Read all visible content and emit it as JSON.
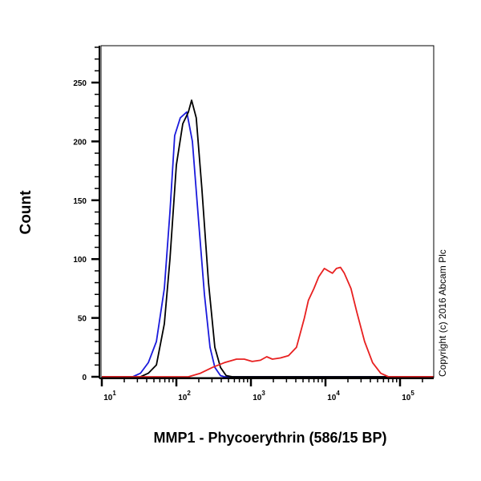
{
  "chart_data": {
    "type": "line",
    "title": "",
    "xlabel": "MMP1 - Phycoerythrin (586/15 BP)",
    "ylabel": "Count",
    "x_scale": "log",
    "xlim": [
      10,
      280000
    ],
    "ylim": [
      0,
      280
    ],
    "x_ticks": [
      {
        "base": "10",
        "exp": "1",
        "value": 10
      },
      {
        "base": "10",
        "exp": "2",
        "value": 100
      },
      {
        "base": "10",
        "exp": "3",
        "value": 1000
      },
      {
        "base": "10",
        "exp": "4",
        "value": 10000
      },
      {
        "base": "10",
        "exp": "5",
        "value": 100000
      }
    ],
    "y_ticks": [
      {
        "label": "0",
        "value": 0
      },
      {
        "label": "50",
        "value": 50
      },
      {
        "label": "100",
        "value": 100
      },
      {
        "label": "150",
        "value": 150
      },
      {
        "label": "200",
        "value": 200
      },
      {
        "label": "250",
        "value": 250
      }
    ],
    "grid": false,
    "annotation": "Copyright (c) 2016 Abcam Plc",
    "series": [
      {
        "color": "#1a1adc",
        "x": [
          10,
          26,
          33,
          42,
          54,
          69,
          82,
          95,
          113,
          138,
          164,
          200,
          238,
          283,
          328,
          390,
          442,
          280000
        ],
        "y": [
          0,
          0,
          3,
          12,
          30,
          75,
          140,
          205,
          220,
          225,
          200,
          130,
          70,
          25,
          8,
          1,
          0,
          0
        ]
      },
      {
        "color": "#000000",
        "x": [
          10,
          33,
          42,
          54,
          69,
          82,
          100,
          122,
          145,
          160,
          185,
          220,
          270,
          328,
          390,
          465,
          565,
          280000
        ],
        "y": [
          0,
          0,
          3,
          10,
          45,
          100,
          180,
          215,
          225,
          235,
          220,
          160,
          80,
          25,
          8,
          1,
          0,
          0
        ]
      },
      {
        "color": "#e82020",
        "x": [
          10,
          145,
          210,
          305,
          440,
          640,
          815,
          1040,
          1340,
          1630,
          1940,
          2490,
          3190,
          4080,
          5220,
          5900,
          7000,
          8130,
          9660,
          10900,
          12400,
          14000,
          15900,
          17900,
          22000,
          26300,
          33500,
          42900,
          55000,
          70000,
          280000
        ],
        "y": [
          0,
          0,
          3,
          8,
          12,
          15,
          15,
          13,
          14,
          17,
          15,
          16,
          18,
          25,
          50,
          65,
          75,
          85,
          92,
          90,
          88,
          92,
          93,
          88,
          75,
          55,
          30,
          12,
          3,
          0,
          0
        ]
      }
    ]
  }
}
